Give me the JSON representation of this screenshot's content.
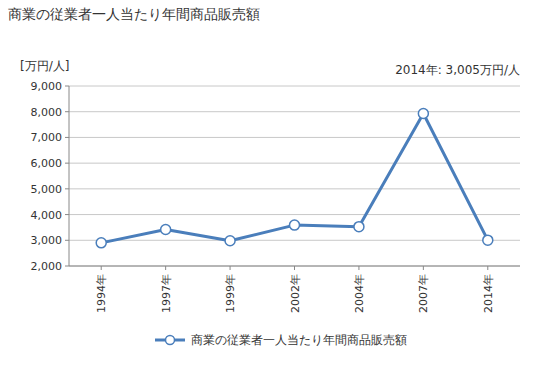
{
  "chart_data": {
    "type": "line",
    "title": "商業の従業者一人当たり年間商品販売額",
    "y_label": "[万円/人]",
    "annotation": "2014年: 3,005万円/人",
    "categories": [
      "1994年",
      "1997年",
      "1999年",
      "2002年",
      "2004年",
      "2007年",
      "2014年"
    ],
    "series": [
      {
        "name": "商業の従業者一人当たり年間商品販売額",
        "color": "#4a7ebb",
        "marker": "circle",
        "values": [
          2900,
          3420,
          2980,
          3590,
          3530,
          7930,
          3005
        ]
      }
    ],
    "ylim": [
      2000,
      9000
    ],
    "yticks": [
      {
        "value": 2000,
        "label": "2,000"
      },
      {
        "value": 3000,
        "label": "3,000"
      },
      {
        "value": 4000,
        "label": "4,000"
      },
      {
        "value": 5000,
        "label": "5,000"
      },
      {
        "value": 6000,
        "label": "6,000"
      },
      {
        "value": 7000,
        "label": "7,000"
      },
      {
        "value": 8000,
        "label": "8,000"
      },
      {
        "value": 9000,
        "label": "9,000"
      }
    ],
    "grid": true,
    "legend": "bottom"
  }
}
